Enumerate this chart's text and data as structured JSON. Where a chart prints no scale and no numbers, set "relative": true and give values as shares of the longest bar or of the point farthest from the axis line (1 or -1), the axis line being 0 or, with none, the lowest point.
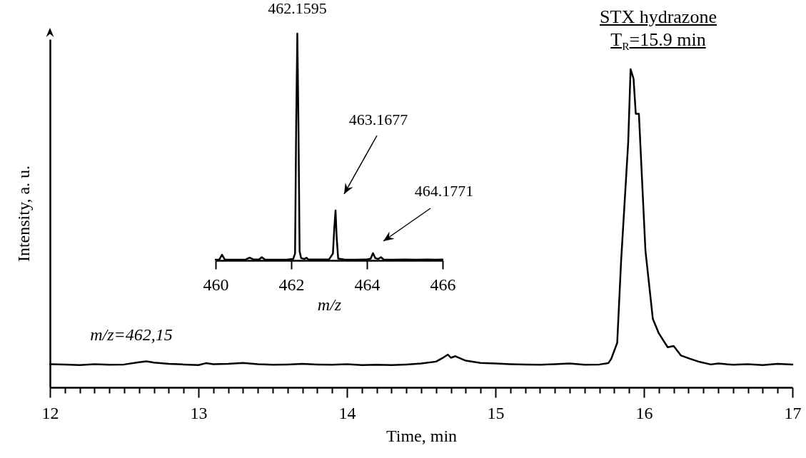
{
  "chart_data": [
    {
      "type": "line",
      "relative": true,
      "xlabel": "Time, min",
      "ylabel": "Intensity, a. u.",
      "xlim": [
        12,
        17
      ],
      "xticks": [
        12,
        {
          "value": 12.1,
          "label": null
        },
        {
          "value": 12.2,
          "label": null
        },
        {
          "value": 12.3,
          "label": null
        },
        {
          "value": 12.4,
          "label": null
        },
        {
          "value": 12.5,
          "label": null
        },
        {
          "value": 12.6,
          "label": null
        },
        {
          "value": 12.7,
          "label": null
        },
        {
          "value": 12.8,
          "label": null
        },
        {
          "value": 12.9,
          "label": null
        },
        13,
        {
          "value": 13.1,
          "label": null
        },
        {
          "value": 13.2,
          "label": null
        },
        {
          "value": 13.3,
          "label": null
        },
        {
          "value": 13.4,
          "label": null
        },
        {
          "value": 13.5,
          "label": null
        },
        {
          "value": 13.6,
          "label": null
        },
        {
          "value": 13.7,
          "label": null
        },
        {
          "value": 13.8,
          "label": null
        },
        {
          "value": 13.9,
          "label": null
        },
        14,
        {
          "value": 14.1,
          "label": null
        },
        {
          "value": 14.2,
          "label": null
        },
        {
          "value": 14.3,
          "label": null
        },
        {
          "value": 14.4,
          "label": null
        },
        {
          "value": 14.5,
          "label": null
        },
        {
          "value": 14.6,
          "label": null
        },
        {
          "value": 14.7,
          "label": null
        },
        {
          "value": 14.8,
          "label": null
        },
        {
          "value": 14.9,
          "label": null
        },
        15,
        {
          "value": 15.1,
          "label": null
        },
        {
          "value": 15.2,
          "label": null
        },
        {
          "value": 15.3,
          "label": null
        },
        {
          "value": 15.4,
          "label": null
        },
        {
          "value": 15.5,
          "label": null
        },
        {
          "value": 15.6,
          "label": null
        },
        {
          "value": 15.7,
          "label": null
        },
        {
          "value": 15.8,
          "label": null
        },
        {
          "value": 15.9,
          "label": null
        },
        16,
        {
          "value": 16.1,
          "label": null
        },
        {
          "value": 16.2,
          "label": null
        },
        {
          "value": 16.3,
          "label": null
        },
        {
          "value": 16.4,
          "label": null
        },
        {
          "value": 16.5,
          "label": null
        },
        {
          "value": 16.6,
          "label": null
        },
        {
          "value": 16.7,
          "label": null
        },
        {
          "value": 16.8,
          "label": null
        },
        {
          "value": 16.9,
          "label": null
        },
        17
      ],
      "x": [
        12.0,
        12.1,
        12.2,
        12.3,
        12.4,
        12.5,
        12.6,
        12.65,
        12.7,
        12.8,
        12.9,
        13.0,
        13.05,
        13.1,
        13.2,
        13.3,
        13.4,
        13.5,
        13.6,
        13.7,
        13.8,
        13.9,
        14.0,
        14.1,
        14.2,
        14.3,
        14.4,
        14.5,
        14.6,
        14.65,
        14.68,
        14.7,
        14.73,
        14.8,
        14.9,
        15.0,
        15.1,
        15.2,
        15.3,
        15.4,
        15.5,
        15.6,
        15.7,
        15.76,
        15.78,
        15.82,
        15.846,
        15.894,
        15.91,
        15.93,
        15.945,
        15.966,
        16.01,
        16.06,
        16.1,
        16.16,
        16.2,
        16.25,
        16.31,
        16.375,
        16.45,
        16.5,
        16.6,
        16.7,
        16.8,
        16.9,
        17.0
      ],
      "series": [
        {
          "color": "#000000",
          "values": [
            0.073,
            0.072,
            0.07,
            0.073,
            0.071,
            0.072,
            0.079,
            0.082,
            0.078,
            0.074,
            0.072,
            0.07,
            0.076,
            0.073,
            0.074,
            0.077,
            0.073,
            0.071,
            0.072,
            0.074,
            0.072,
            0.071,
            0.073,
            0.07,
            0.071,
            0.07,
            0.072,
            0.075,
            0.081,
            0.094,
            0.103,
            0.093,
            0.098,
            0.084,
            0.077,
            0.075,
            0.073,
            0.072,
            0.071,
            0.073,
            0.075,
            0.071,
            0.072,
            0.076,
            0.09,
            0.14,
            0.395,
            0.77,
            1,
            0.97,
            0.86,
            0.86,
            0.43,
            0.215,
            0.17,
            0.126,
            0.13,
            0.1,
            0.09,
            0.08,
            0.072,
            0.075,
            0.071,
            0.073,
            0.07,
            0.074,
            0.072
          ]
        }
      ],
      "line_style": "solid",
      "annotations": [
        "STX hydrazone",
        "T$_{R}$=15.9 min",
        "m/z=462,15"
      ]
    },
    {
      "type": "line",
      "relative": true,
      "xlabel": "m/z",
      "xlim": [
        460,
        466
      ],
      "xticks": [
        460,
        462,
        464,
        466
      ],
      "x": [
        460.0,
        460.1,
        460.17,
        460.24,
        460.5,
        460.8,
        460.9,
        461.0,
        461.15,
        461.22,
        461.3,
        461.6,
        461.9,
        462.05,
        462.1,
        462.13,
        462.16,
        462.19,
        462.22,
        462.26,
        462.35,
        462.4,
        462.45,
        462.7,
        463.0,
        463.1,
        463.14,
        463.17,
        463.2,
        463.24,
        463.4,
        463.7,
        464.0,
        464.1,
        464.16,
        464.22,
        464.3,
        464.37,
        464.44,
        464.7,
        465.0,
        465.3,
        465.6,
        465.8,
        466.0
      ],
      "series": [
        {
          "color": "#000000",
          "values": [
            0.003,
            0.004,
            0.025,
            0.004,
            0.003,
            0.004,
            0.012,
            0.004,
            0.004,
            0.014,
            0.004,
            0.003,
            0.004,
            0.006,
            0.03,
            0.6,
            1,
            0.6,
            0.04,
            0.01,
            0.006,
            0.012,
            0.004,
            0.004,
            0.005,
            0.03,
            0.15,
            0.22,
            0.1,
            0.008,
            0.004,
            0.003,
            0.004,
            0.008,
            0.032,
            0.01,
            0.006,
            0.014,
            0.004,
            0.003,
            0.004,
            0.003,
            0.004,
            0.003,
            0.004
          ]
        }
      ],
      "line_style": "solid",
      "annotations": [
        {
          "text": "462.1595",
          "x": 462.16,
          "y": 1
        },
        "463.1677",
        "464.1771"
      ]
    }
  ]
}
